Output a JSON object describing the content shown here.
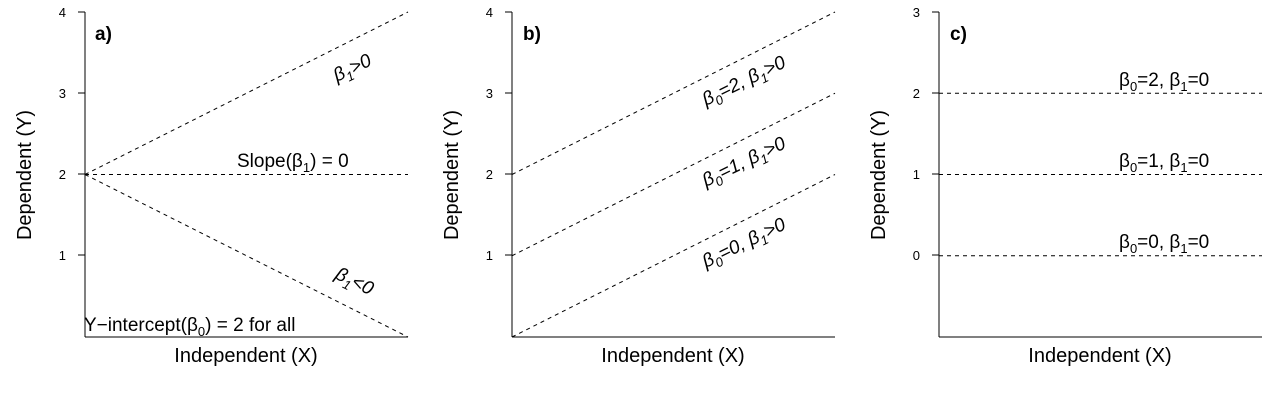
{
  "chart_data": [
    {
      "type": "line",
      "panel_label": "a)",
      "xlabel": "Independent (X)",
      "ylabel": "Dependent (Y)",
      "ylim": [
        0,
        4
      ],
      "yticks": [
        "1",
        "2",
        "3",
        "4"
      ],
      "xlim": [
        0,
        1
      ],
      "series": [
        {
          "x": [
            0,
            1
          ],
          "y": [
            2,
            4
          ]
        },
        {
          "x": [
            0,
            1
          ],
          "y": [
            2,
            2
          ]
        },
        {
          "x": [
            0,
            1
          ],
          "y": [
            2,
            0
          ]
        }
      ],
      "annotations": {
        "beta_pos": {
          "base": "β",
          "sub": "1",
          "tail": ">0"
        },
        "slope": {
          "pre": "Slope(",
          "base": "β",
          "sub": "1",
          "tail": ") = 0"
        },
        "beta_neg": {
          "base": "β",
          "sub": "1",
          "tail": "<0"
        },
        "intercept": {
          "pre": "Y−intercept(",
          "base": "β",
          "sub": "0",
          "tail": ") = 2 for all"
        }
      }
    },
    {
      "type": "line",
      "panel_label": "b)",
      "xlabel": "Independent (X)",
      "ylabel": "Dependent (Y)",
      "ylim": [
        0,
        4
      ],
      "yticks": [
        "1",
        "2",
        "3",
        "4"
      ],
      "xlim": [
        0,
        1
      ],
      "series": [
        {
          "x": [
            0,
            1
          ],
          "y": [
            2,
            4
          ]
        },
        {
          "x": [
            0,
            1
          ],
          "y": [
            1,
            3
          ]
        },
        {
          "x": [
            0,
            1
          ],
          "y": [
            0,
            2
          ]
        }
      ],
      "annotations": {
        "line2": {
          "b0": "β",
          "s0": "0",
          "mid": "=2, ",
          "b1": "β",
          "s1": "1",
          "tail": ">0"
        },
        "line1": {
          "b0": "β",
          "s0": "0",
          "mid": "=1, ",
          "b1": "β",
          "s1": "1",
          "tail": ">0"
        },
        "line0": {
          "b0": "β",
          "s0": "0",
          "mid": "=0, ",
          "b1": "β",
          "s1": "1",
          "tail": ">0"
        }
      }
    },
    {
      "type": "line",
      "panel_label": "c)",
      "xlabel": "Independent (X)",
      "ylabel": "Dependent (Y)",
      "ylim": [
        -1,
        3
      ],
      "yticks": [
        "0",
        "1",
        "2",
        "3"
      ],
      "xlim": [
        0,
        1
      ],
      "series": [
        {
          "x": [
            0,
            1
          ],
          "y": [
            2,
            2
          ]
        },
        {
          "x": [
            0,
            1
          ],
          "y": [
            1,
            1
          ]
        },
        {
          "x": [
            0,
            1
          ],
          "y": [
            0,
            0
          ]
        }
      ],
      "annotations": {
        "line2": {
          "b0": "β",
          "s0": "0",
          "mid": "=2, ",
          "b1": "β",
          "s1": "1",
          "tail": "=0"
        },
        "line1": {
          "b0": "β",
          "s0": "0",
          "mid": "=1, ",
          "b1": "β",
          "s1": "1",
          "tail": "=0"
        },
        "line0": {
          "b0": "β",
          "s0": "0",
          "mid": "=0, ",
          "b1": "β",
          "s1": "1",
          "tail": "=0"
        }
      }
    }
  ]
}
